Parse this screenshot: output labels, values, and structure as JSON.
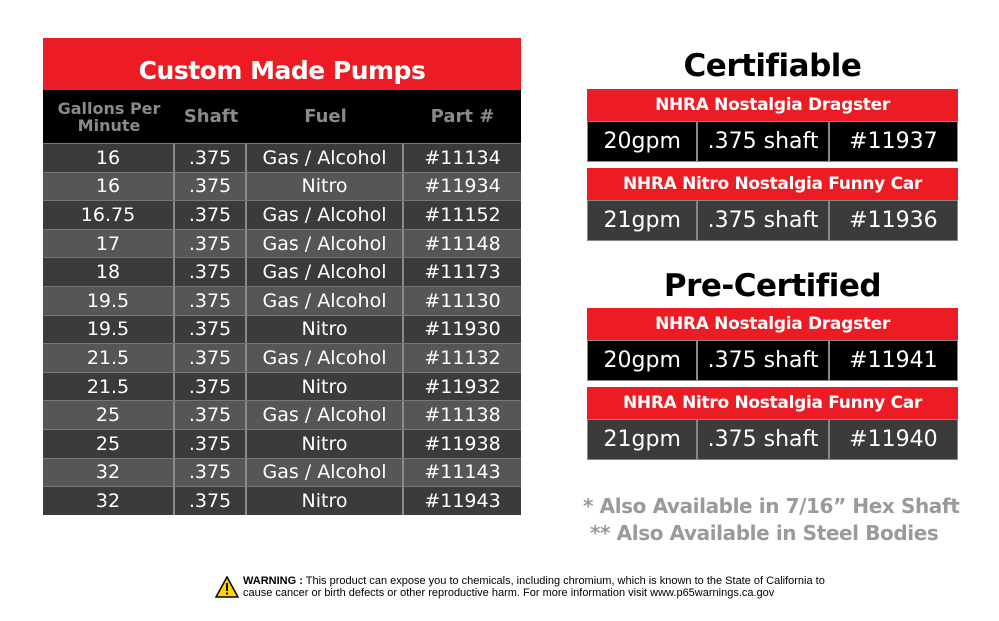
{
  "custom_table": {
    "title": "Custom Made Pumps",
    "headers": [
      "Gallons Per Minute",
      "Shaft",
      "Fuel",
      "Part #"
    ],
    "rows": [
      [
        "16",
        ".375",
        "Gas / Alcohol",
        "#11134"
      ],
      [
        "16",
        ".375",
        "Nitro",
        "#11934"
      ],
      [
        "16.75",
        ".375",
        "Gas / Alcohol",
        "#11152"
      ],
      [
        "17",
        ".375",
        "Gas / Alcohol",
        "#11148"
      ],
      [
        "18",
        ".375",
        "Gas / Alcohol",
        "#11173"
      ],
      [
        "19.5",
        ".375",
        "Gas / Alcohol",
        "#11130"
      ],
      [
        "19.5",
        ".375",
        "Nitro",
        "#11930"
      ],
      [
        "21.5",
        ".375",
        "Gas / Alcohol",
        "#11132"
      ],
      [
        "21.5",
        ".375",
        "Nitro",
        "#11932"
      ],
      [
        "25",
        ".375",
        "Gas / Alcohol",
        "#11138"
      ],
      [
        "25",
        ".375",
        "Nitro",
        "#11938"
      ],
      [
        "32",
        ".375",
        "Gas / Alcohol",
        "#11143"
      ],
      [
        "32",
        ".375",
        "Nitro",
        "#11943"
      ]
    ]
  },
  "certifiable": {
    "title": "Certifiable",
    "items": [
      {
        "name": "NHRA Nostalgia Dragster",
        "cells": [
          "20gpm",
          ".375 shaft",
          "#11937"
        ],
        "bg": "#000000"
      },
      {
        "name": "NHRA Nitro Nostalgia Funny Car",
        "cells": [
          "21gpm",
          ".375 shaft",
          "#11936"
        ],
        "bg": "#3b3b3b"
      }
    ]
  },
  "pre_certified": {
    "title": "Pre-Certified",
    "items": [
      {
        "name": "NHRA Nostalgia Dragster",
        "cells": [
          "20gpm",
          ".375 shaft",
          "#11941"
        ],
        "bg": "#000000"
      },
      {
        "name": "NHRA Nitro Nostalgia Funny Car",
        "cells": [
          "21gpm",
          ".375 shaft",
          "#11940"
        ],
        "bg": "#3b3b3b"
      }
    ]
  },
  "notes": [
    "* Also Available in 7/16” Hex Shaft",
    "** Also Available in Steel Bodies"
  ],
  "warning": {
    "icon": "warning-triangle-icon",
    "label": "WARNING :",
    "line1": " This product can expose you to chemicals, including chromium, which is known to the State of California to",
    "line2": "cause cancer or birth defects or other reproductive harm. For more information visit www.p65warnings.ca.gov"
  },
  "colors": {
    "red": "#ed1c24",
    "dark_row": "#3b3b3b",
    "light_row": "#565656",
    "note_grey": "#9a9a9a"
  }
}
